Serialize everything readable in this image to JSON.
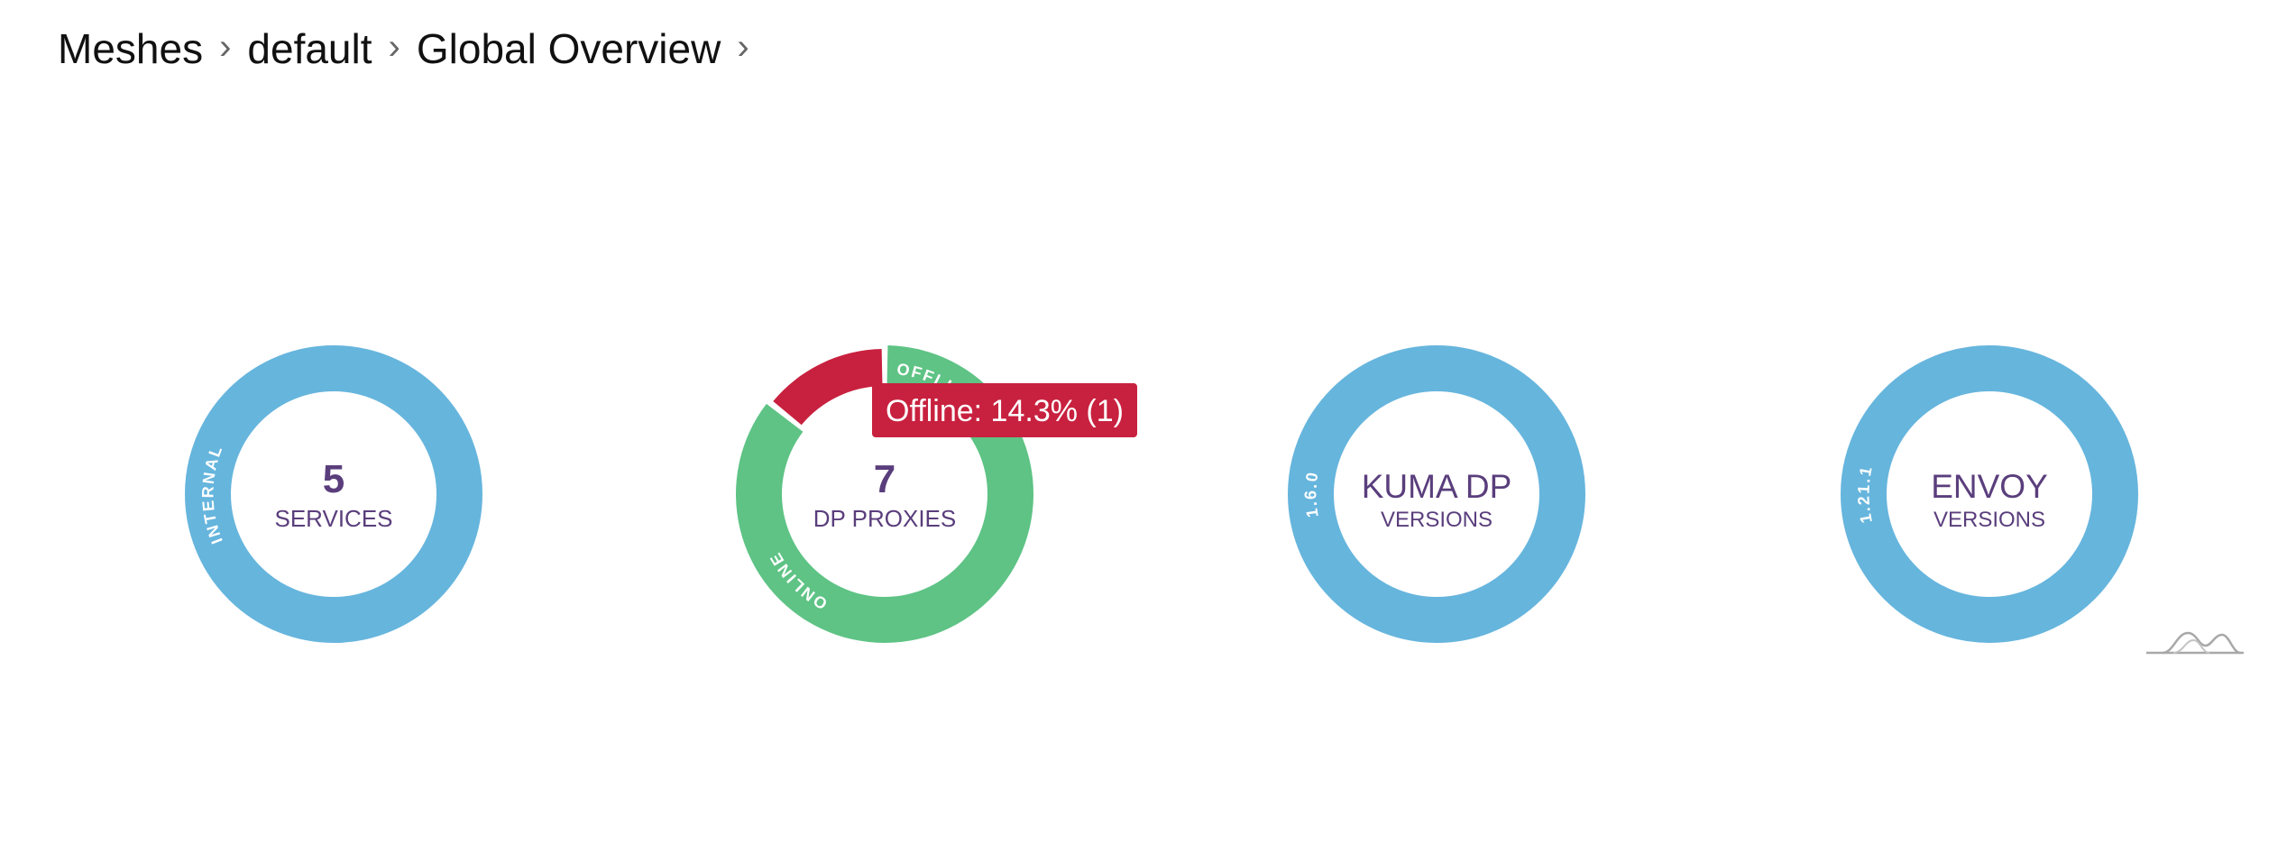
{
  "breadcrumb": {
    "items": [
      "Meshes",
      "default",
      "Global Overview"
    ],
    "separator": "›"
  },
  "chart_data": [
    {
      "type": "pie",
      "center_value": "5",
      "center_label": "SERVICES",
      "slices": [
        {
          "label": "INTERNAL",
          "value": 5,
          "color": "#66b5dd"
        }
      ]
    },
    {
      "type": "pie",
      "center_value": "7",
      "center_label": "DP PROXIES",
      "slices": [
        {
          "label": "ONLINE",
          "value": 6,
          "color": "#5ec385"
        },
        {
          "label": "OFFLINE",
          "value": 1,
          "color": "#c8213f"
        }
      ],
      "tooltip": "Offline: 14.3% (1)",
      "highlighted_slice": "OFFLINE"
    },
    {
      "type": "pie",
      "center_title": "KUMA DP",
      "center_subtitle": "VERSIONS",
      "slices": [
        {
          "label": "1.6.0",
          "value": 1,
          "color": "#66b5dd"
        }
      ]
    },
    {
      "type": "pie",
      "center_title": "ENVOY",
      "center_subtitle": "VERSIONS",
      "slices": [
        {
          "label": "1.21.1",
          "value": 1,
          "color": "#66b5dd"
        }
      ]
    }
  ],
  "icons": {
    "chart_logo": "amcharts-logo-icon"
  }
}
